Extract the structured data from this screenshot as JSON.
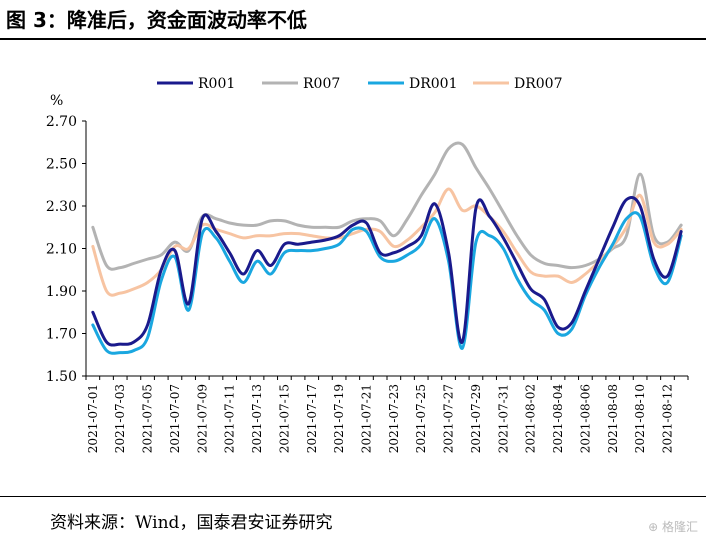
{
  "header": {
    "title": "图 3：降准后，资金面波动率不低"
  },
  "footer": {
    "source": "资料来源：Wind，国泰君安证券研究",
    "watermark": "格隆汇"
  },
  "chart_data": {
    "type": "line",
    "ylabel": "%",
    "ylim": [
      1.5,
      2.7
    ],
    "y_ticks": [
      "1.50",
      "1.70",
      "1.90",
      "2.10",
      "2.30",
      "2.50",
      "2.70"
    ],
    "legend_position": "top",
    "grid": false,
    "x": [
      "2021-07-01",
      "2021-07-02",
      "2021-07-03",
      "2021-07-04",
      "2021-07-05",
      "2021-07-06",
      "2021-07-07",
      "2021-07-08",
      "2021-07-09",
      "2021-07-10",
      "2021-07-11",
      "2021-07-12",
      "2021-07-13",
      "2021-07-14",
      "2021-07-15",
      "2021-07-16",
      "2021-07-17",
      "2021-07-18",
      "2021-07-19",
      "2021-07-20",
      "2021-07-21",
      "2021-07-22",
      "2021-07-23",
      "2021-07-24",
      "2021-07-25",
      "2021-07-26",
      "2021-07-27",
      "2021-07-28",
      "2021-07-29",
      "2021-07-30",
      "2021-07-31",
      "2021-08-01",
      "2021-08-02",
      "2021-08-03",
      "2021-08-04",
      "2021-08-05",
      "2021-08-06",
      "2021-08-07",
      "2021-08-08",
      "2021-08-09",
      "2021-08-10",
      "2021-08-11",
      "2021-08-12",
      "2021-08-13"
    ],
    "x_ticks": [
      "2021-07-01",
      "2021-07-03",
      "2021-07-05",
      "2021-07-07",
      "2021-07-09",
      "2021-07-11",
      "2021-07-13",
      "2021-07-15",
      "2021-07-17",
      "2021-07-19",
      "2021-07-21",
      "2021-07-23",
      "2021-07-25",
      "2021-07-27",
      "2021-07-29",
      "2021-07-31",
      "2021-08-02",
      "2021-08-04",
      "2021-08-06",
      "2021-08-08",
      "2021-08-10",
      "2021-08-12"
    ],
    "series": [
      {
        "name": "R001",
        "color": "#1a1a8c",
        "values": [
          1.8,
          1.66,
          1.65,
          1.66,
          1.74,
          2.0,
          2.09,
          1.84,
          2.24,
          2.18,
          2.08,
          1.98,
          2.09,
          2.02,
          2.12,
          2.12,
          2.13,
          2.14,
          2.16,
          2.21,
          2.22,
          2.08,
          2.08,
          2.11,
          2.16,
          2.31,
          2.08,
          1.66,
          2.29,
          2.25,
          2.15,
          2.03,
          1.91,
          1.86,
          1.73,
          1.75,
          1.9,
          2.05,
          2.2,
          2.33,
          2.3,
          2.05,
          1.97,
          2.18
        ]
      },
      {
        "name": "R007",
        "color": "#b3b3b3",
        "values": [
          2.2,
          2.02,
          2.01,
          2.03,
          2.05,
          2.07,
          2.13,
          2.09,
          2.25,
          2.24,
          2.22,
          2.21,
          2.21,
          2.23,
          2.23,
          2.21,
          2.2,
          2.2,
          2.2,
          2.23,
          2.24,
          2.23,
          2.16,
          2.24,
          2.35,
          2.45,
          2.57,
          2.59,
          2.48,
          2.38,
          2.27,
          2.16,
          2.07,
          2.03,
          2.02,
          2.01,
          2.02,
          2.05,
          2.1,
          2.16,
          2.45,
          2.16,
          2.13,
          2.21
        ]
      },
      {
        "name": "DR001",
        "color": "#1aa7e0",
        "values": [
          1.74,
          1.62,
          1.61,
          1.62,
          1.68,
          1.95,
          2.06,
          1.81,
          2.17,
          2.15,
          2.04,
          1.94,
          2.04,
          1.98,
          2.08,
          2.09,
          2.09,
          2.1,
          2.12,
          2.19,
          2.18,
          2.06,
          2.04,
          2.07,
          2.12,
          2.24,
          2.04,
          1.63,
          2.13,
          2.16,
          2.1,
          1.96,
          1.86,
          1.81,
          1.7,
          1.72,
          1.88,
          2.01,
          2.12,
          2.24,
          2.25,
          2.02,
          1.94,
          2.16
        ]
      },
      {
        "name": "DR007",
        "color": "#f7c4a2",
        "values": [
          2.11,
          1.9,
          1.89,
          1.91,
          1.94,
          2.0,
          2.11,
          2.1,
          2.21,
          2.19,
          2.17,
          2.15,
          2.16,
          2.16,
          2.17,
          2.17,
          2.16,
          2.15,
          2.15,
          2.17,
          2.19,
          2.18,
          2.11,
          2.14,
          2.2,
          2.27,
          2.38,
          2.28,
          2.3,
          2.25,
          2.18,
          2.08,
          1.99,
          1.97,
          1.97,
          1.94,
          1.98,
          2.04,
          2.11,
          2.2,
          2.35,
          2.13,
          2.12,
          2.19
        ]
      }
    ]
  }
}
